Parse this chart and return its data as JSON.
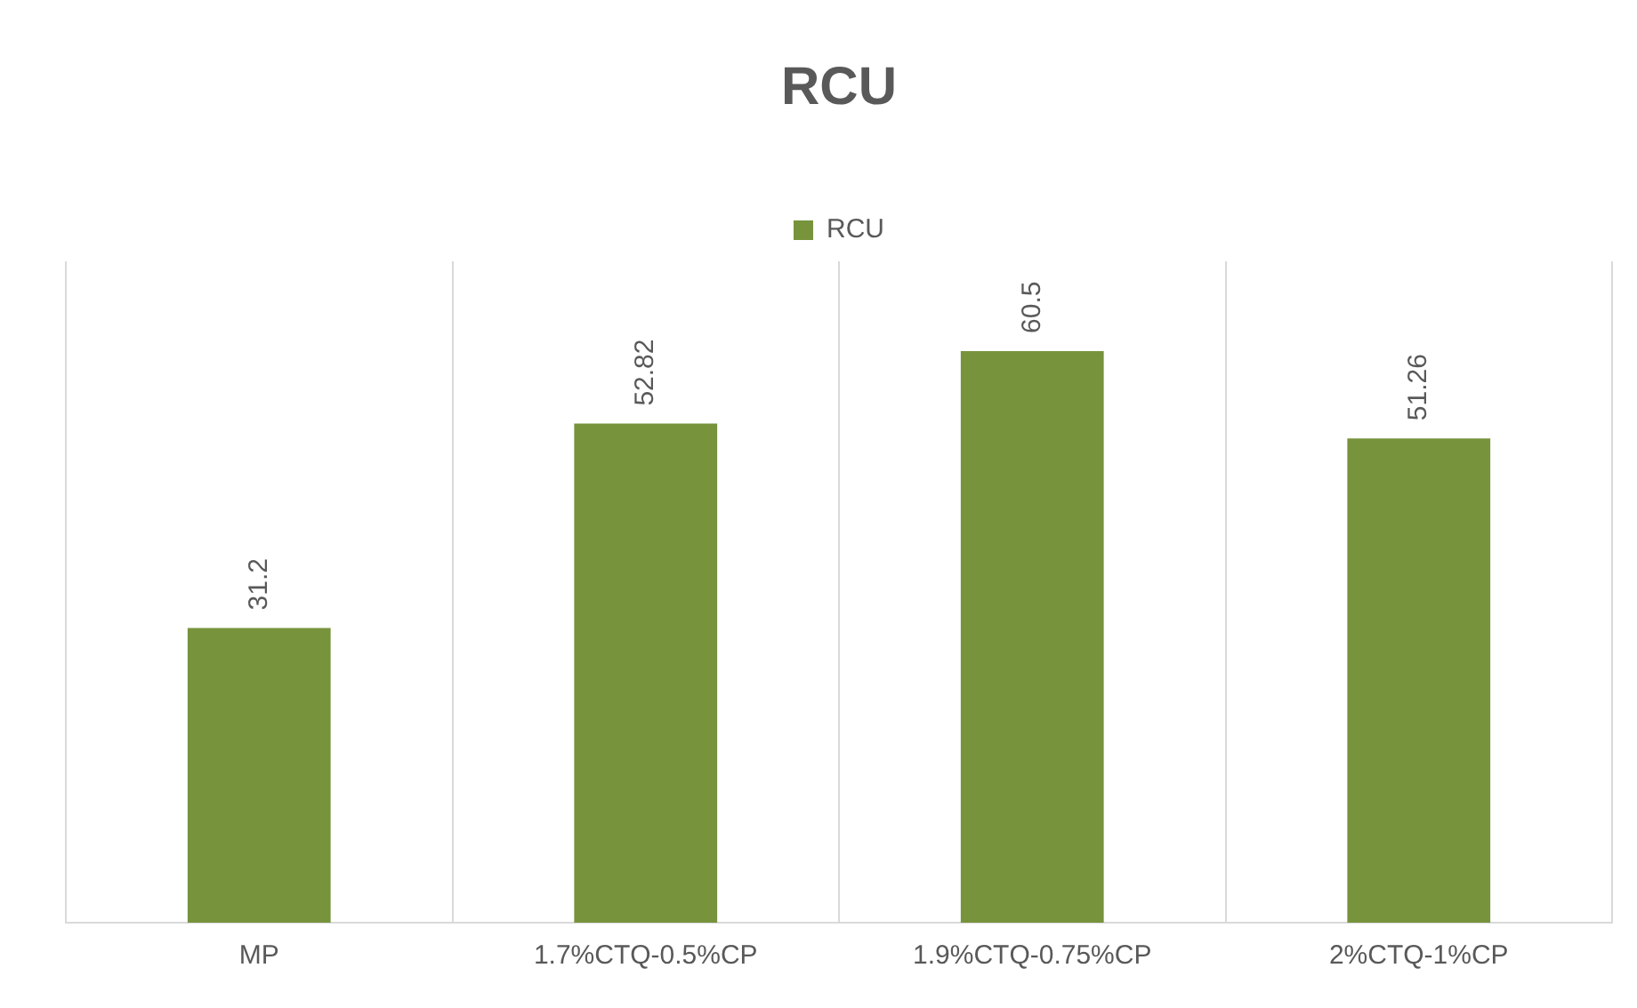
{
  "chart_data": {
    "type": "bar",
    "title": "RCU",
    "categories": [
      "MP",
      "1.7%CTQ-0.5%CP",
      "1.9%CTQ-0.75%CP",
      "2%CTQ-1%CP"
    ],
    "series": [
      {
        "name": "RCU",
        "color": "#77933c",
        "values": [
          31.2,
          52.82,
          60.5,
          51.26
        ]
      }
    ],
    "ylim": [
      0,
      70
    ],
    "grid": "x",
    "legend": "top",
    "data_labels": true,
    "tick_labels": "x"
  }
}
